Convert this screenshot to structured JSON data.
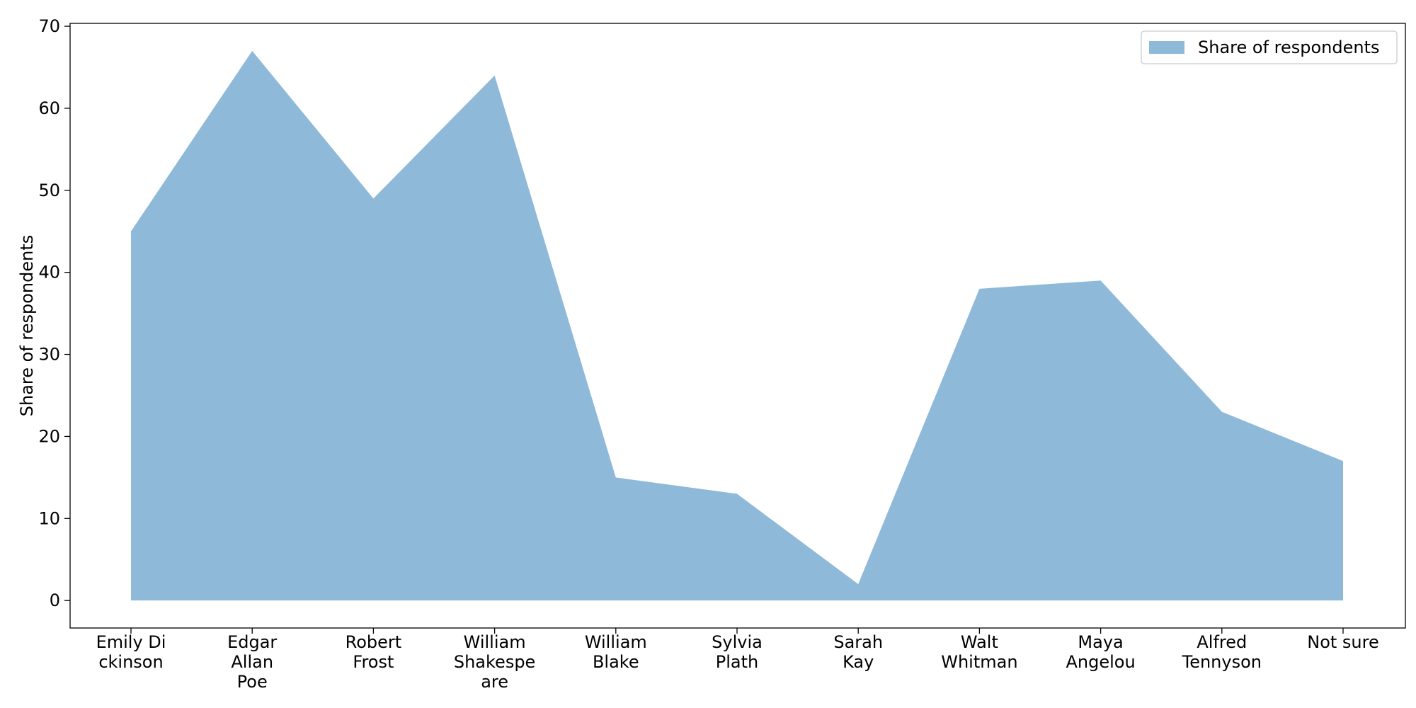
{
  "chart_data": {
    "type": "area",
    "title": "",
    "xlabel": "",
    "ylabel": "Share of respondents",
    "categories": [
      [
        "Emily Di",
        "ckinson"
      ],
      [
        "Edgar",
        "Allan",
        "Poe"
      ],
      [
        "Robert",
        "Frost"
      ],
      [
        "William",
        "Shakespe",
        "are"
      ],
      [
        "William",
        "Blake"
      ],
      [
        "Sylvia",
        "Plath"
      ],
      [
        "Sarah",
        "Kay"
      ],
      [
        "Walt",
        "Whitman"
      ],
      [
        "Maya",
        "Angelou"
      ],
      [
        "Alfred",
        "Tennyson"
      ],
      [
        "Not sure"
      ]
    ],
    "series": [
      {
        "name": "Share of respondents",
        "values": [
          45,
          67,
          49,
          64,
          15,
          13,
          2,
          38,
          39,
          23,
          17
        ],
        "color": "#8fb9d9"
      }
    ],
    "ylim": [
      -3.35,
      70.35
    ],
    "yticks": [
      0,
      10,
      20,
      30,
      40,
      50,
      60,
      70
    ],
    "grid": false,
    "legend_position": "top-right"
  }
}
